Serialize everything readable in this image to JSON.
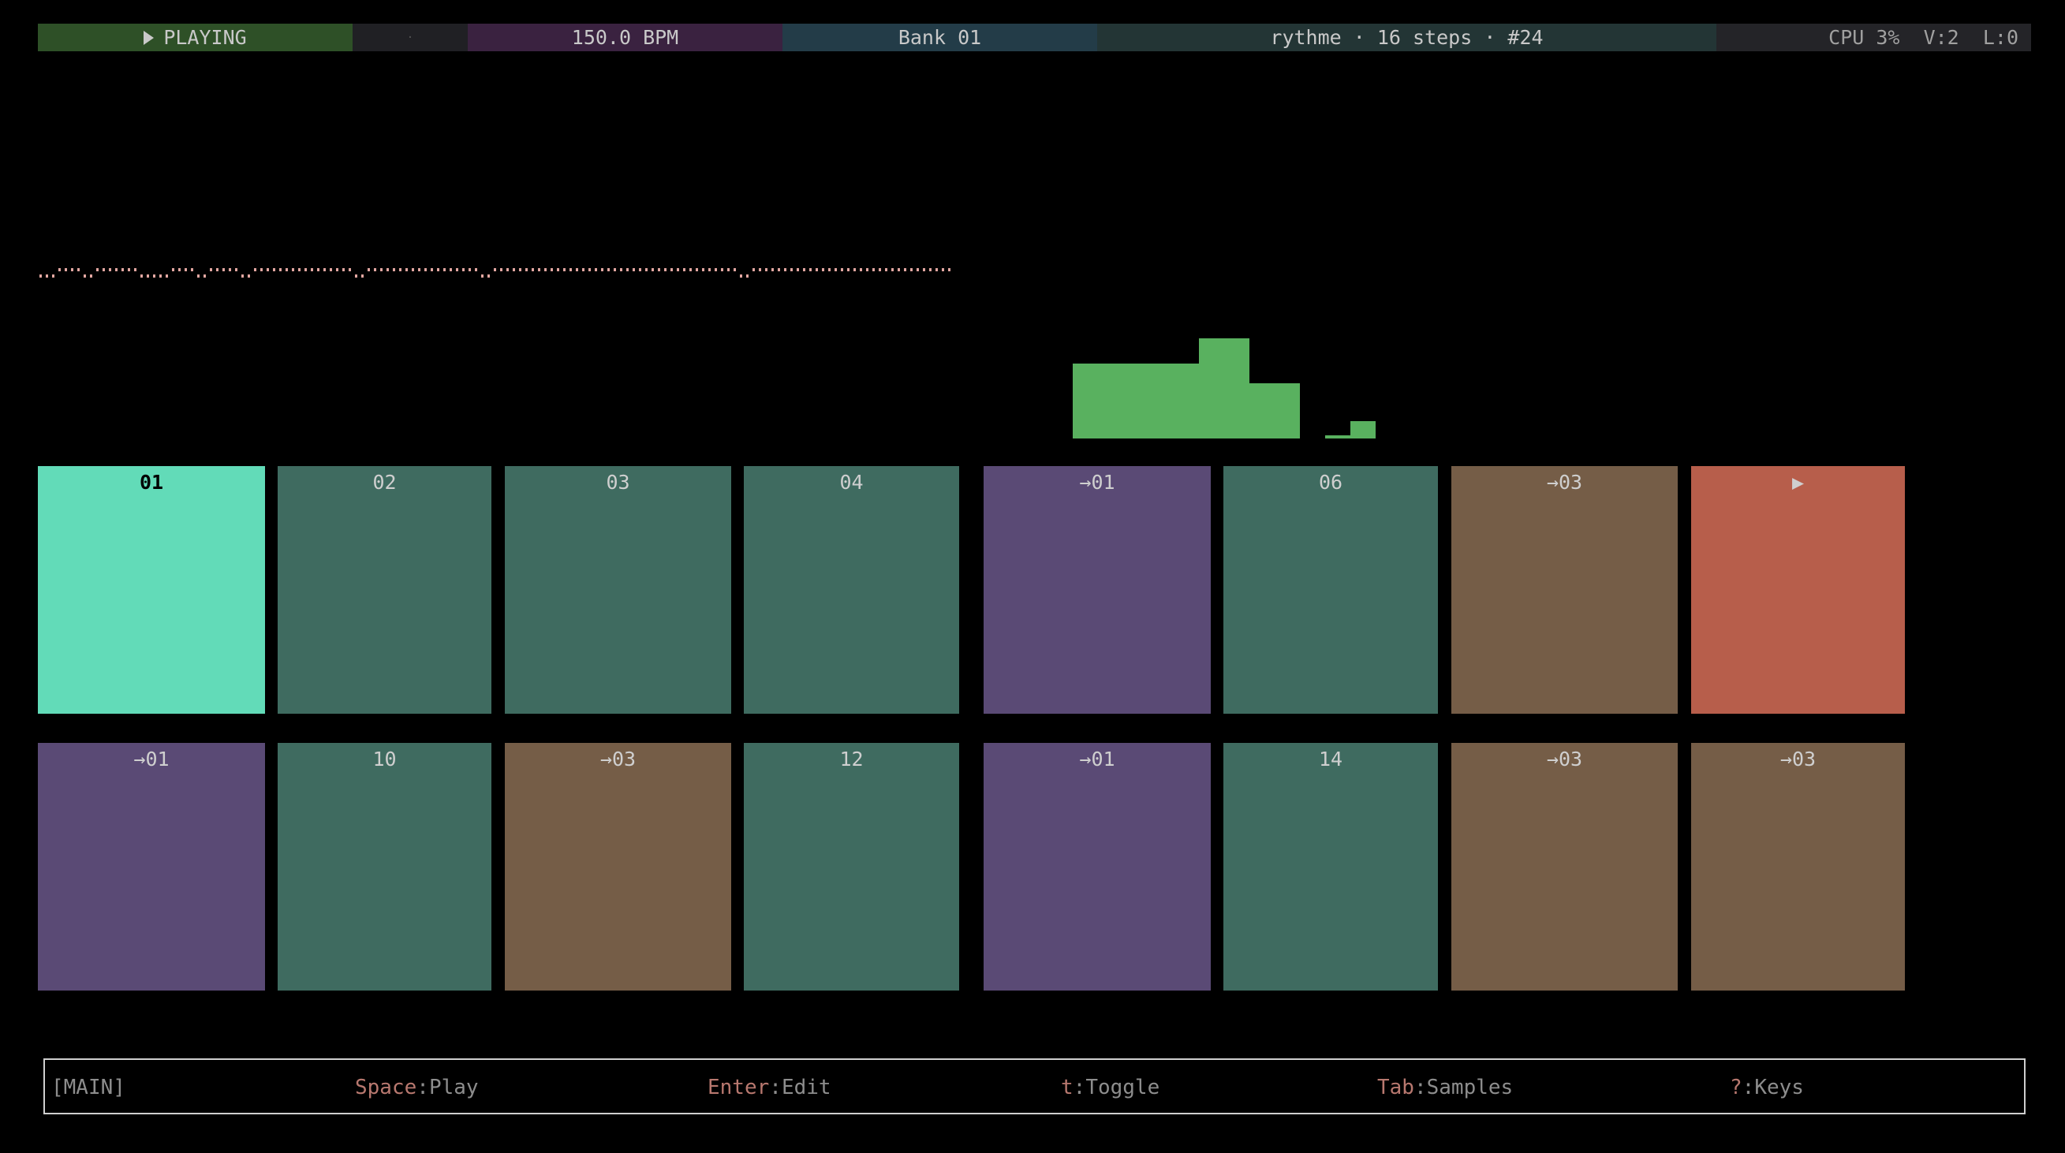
{
  "status_bar": {
    "play_state": "PLAYING",
    "play_icon": "play-triangle-icon",
    "indicator": "·",
    "bpm": "150.0 BPM",
    "bank": "Bank 01",
    "pattern": "rythme · 16 steps · #24",
    "system": "CPU 3%  V:2  L:0",
    "colors": {
      "playing": "#2e5027",
      "indicator": "#202024",
      "bpm": "#3a2240",
      "bank": "#233c48",
      "pattern": "#233535",
      "system": "#242428"
    }
  },
  "waveform": {
    "color": "#e3a7a1",
    "runs": [
      [
        "low",
        3
      ],
      [
        "high",
        4
      ],
      [
        "low",
        2
      ],
      [
        "high",
        7
      ],
      [
        "low",
        5
      ],
      [
        "high",
        4
      ],
      [
        "low",
        2
      ],
      [
        "high",
        5
      ],
      [
        "low",
        2
      ],
      [
        "high",
        16
      ],
      [
        "low",
        2
      ],
      [
        "high",
        18
      ],
      [
        "low",
        2
      ],
      [
        "high",
        39
      ],
      [
        "low",
        2
      ],
      [
        "high",
        32
      ]
    ]
  },
  "level_meter": {
    "color": "#59b15f",
    "levels": [
      0.75,
      0.75,
      0.75,
      0.75,
      0.75,
      1.0,
      1.0,
      0.55,
      0.55,
      0,
      0.03,
      0.17
    ]
  },
  "pads": [
    {
      "label": "01",
      "color": "#62dbb8",
      "active": true
    },
    {
      "label": "02",
      "color": "#3f6b60"
    },
    {
      "label": "03",
      "color": "#3f6b60"
    },
    {
      "label": "04",
      "color": "#3f6b60"
    },
    {
      "label": "→01",
      "color": "#5a4a75"
    },
    {
      "label": "06",
      "color": "#3f6b60"
    },
    {
      "label": "→03",
      "color": "#755d47"
    },
    {
      "label": "▶",
      "color": "#b75e4b"
    },
    {
      "label": "→01",
      "color": "#5a4a75"
    },
    {
      "label": "10",
      "color": "#3f6b60"
    },
    {
      "label": "→03",
      "color": "#755d47"
    },
    {
      "label": "12",
      "color": "#3f6b60"
    },
    {
      "label": "→01",
      "color": "#5a4a75"
    },
    {
      "label": "14",
      "color": "#3f6b60"
    },
    {
      "label": "→03",
      "color": "#755d47"
    },
    {
      "label": "→03",
      "color": "#755d47"
    }
  ],
  "footer": {
    "mode": "[MAIN]",
    "hints": [
      {
        "key": "Space",
        "action": "Play"
      },
      {
        "key": "Enter",
        "action": "Edit"
      },
      {
        "key": "t",
        "action": "Toggle"
      },
      {
        "key": "Tab",
        "action": "Samples"
      },
      {
        "key": "?",
        "action": "Keys"
      }
    ]
  }
}
